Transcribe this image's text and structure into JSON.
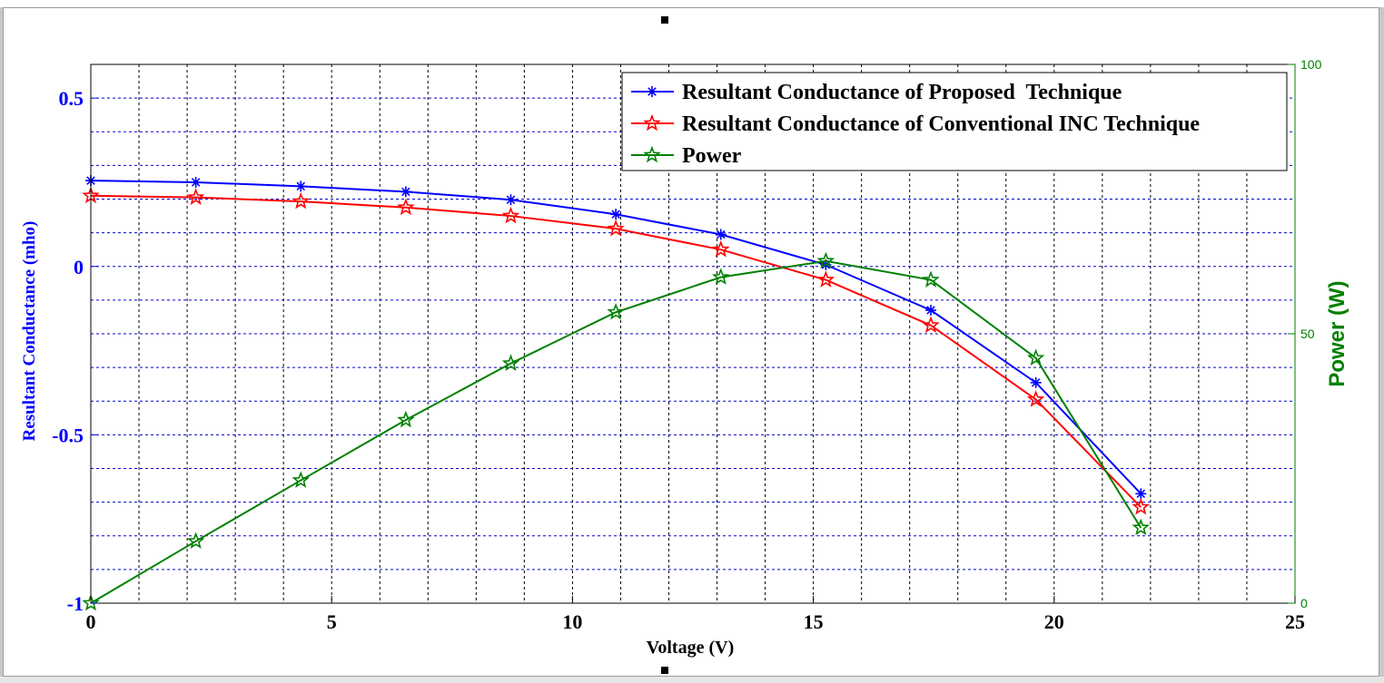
{
  "chart_data": {
    "type": "line",
    "xlabel": "Voltage (V)",
    "ylabel_left": "Resultant Conductance (mho)",
    "ylabel_right": "Power (W)",
    "xlim": [
      0,
      25
    ],
    "ylim_left": [
      -1,
      0.6
    ],
    "ylim_right": [
      0,
      100
    ],
    "x_ticks": [
      "0",
      "5",
      "10",
      "15",
      "20",
      "25"
    ],
    "y_left_ticks": [
      "0.5",
      "0",
      "-0.5",
      "-1"
    ],
    "y_right_ticks": [
      "100",
      "50",
      "0"
    ],
    "grid": true,
    "legend_position": "top-right",
    "colors": {
      "left_axis": "#0000ff",
      "right_axis": "#008000",
      "grid": "#0000cc",
      "proposed": "#0000ff",
      "conventional": "#ff0000",
      "power": "#008000"
    },
    "series": [
      {
        "name": "Resultant Conductance of Proposed  Technique",
        "axis": "left",
        "marker": "asterisk",
        "x": [
          0,
          2.18,
          4.36,
          6.54,
          8.72,
          10.9,
          13.08,
          15.26,
          17.44,
          19.62,
          21.8
        ],
        "values": [
          0.255,
          0.25,
          0.238,
          0.222,
          0.198,
          0.155,
          0.095,
          0.005,
          -0.13,
          -0.345,
          -0.675
        ]
      },
      {
        "name": "Resultant Conductance of Conventional INC Technique",
        "axis": "left",
        "marker": "star",
        "x": [
          0,
          2.18,
          4.36,
          6.54,
          8.72,
          10.9,
          13.08,
          15.26,
          17.44,
          19.62,
          21.8
        ],
        "values": [
          0.21,
          0.205,
          0.193,
          0.175,
          0.15,
          0.112,
          0.05,
          -0.04,
          -0.175,
          -0.395,
          -0.715
        ]
      },
      {
        "name": "Power",
        "axis": "right",
        "marker": "star",
        "x": [
          0,
          2.18,
          4.36,
          6.54,
          8.72,
          10.9,
          13.08,
          15.26,
          17.44,
          19.62,
          21.8
        ],
        "values": [
          0,
          11.5,
          22.8,
          34,
          44.5,
          54,
          60.5,
          63.5,
          60,
          45.5,
          14
        ]
      }
    ]
  }
}
